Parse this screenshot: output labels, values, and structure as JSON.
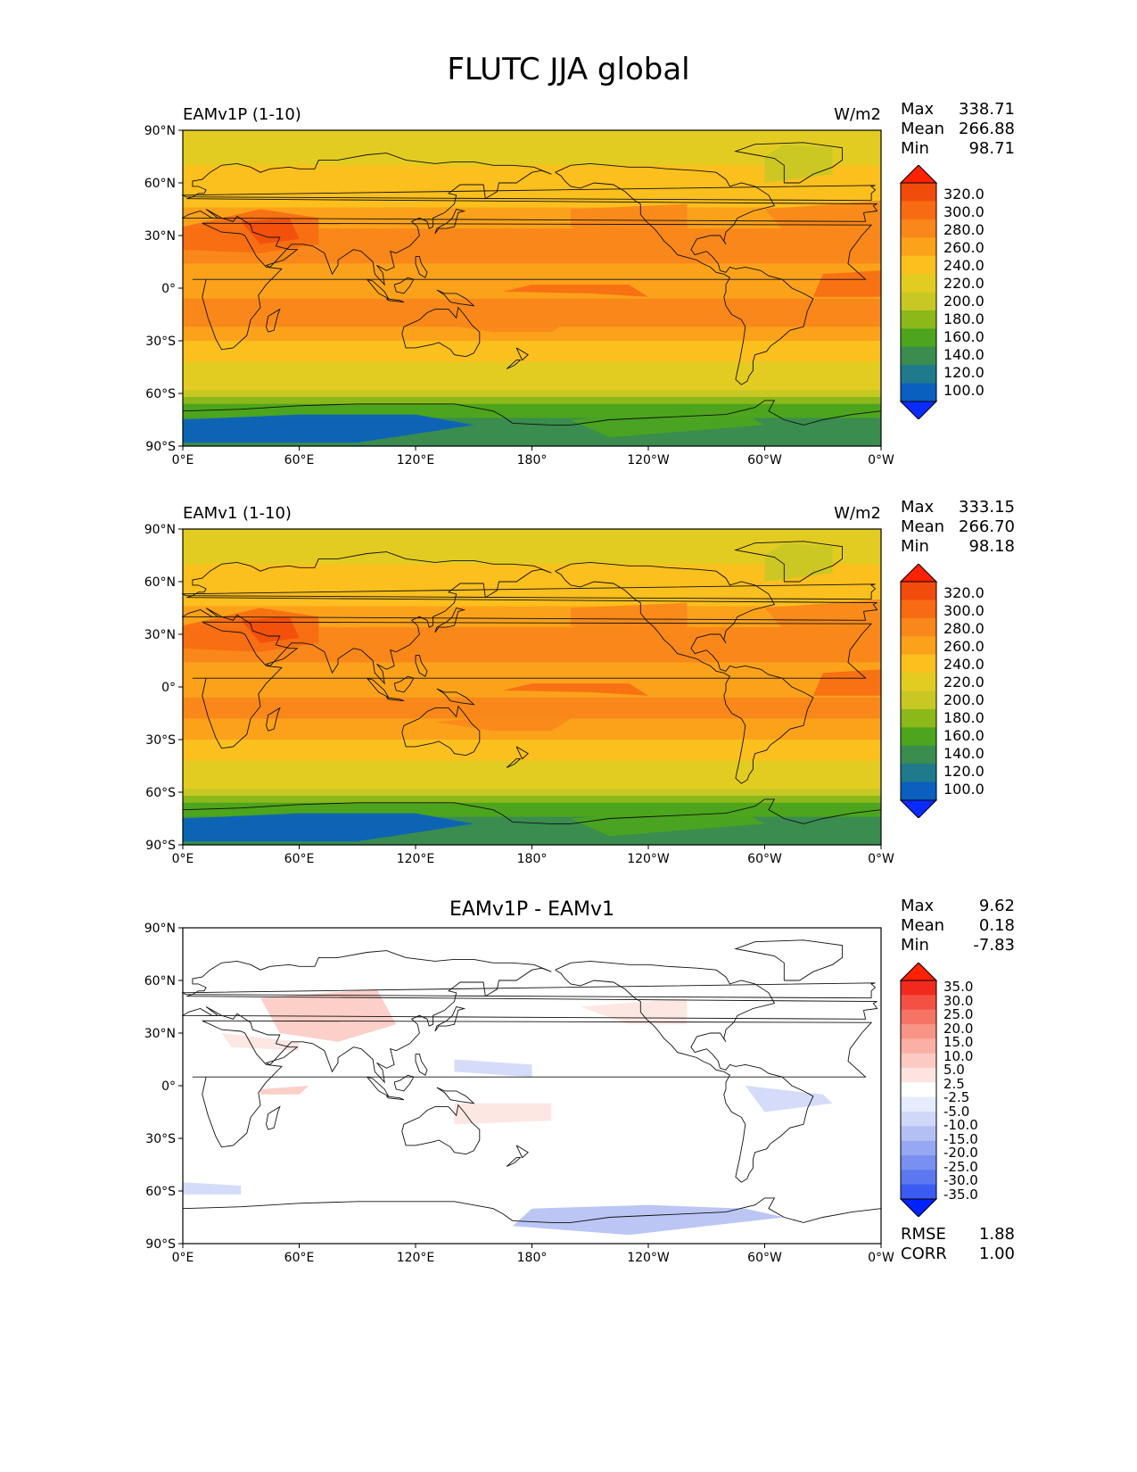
{
  "figure_title": "FLUTC JJA global",
  "lat_ticks": [
    "90°N",
    "60°N",
    "30°N",
    "0°",
    "30°S",
    "60°S",
    "90°S"
  ],
  "lon_ticks": [
    "0°E",
    "60°E",
    "120°E",
    "180°",
    "120°W",
    "60°W",
    "0°W"
  ],
  "panels": [
    {
      "title_left": "EAMv1P (1-10)",
      "units": "W/m2",
      "stats": {
        "max_label": "Max",
        "max": "338.71",
        "mean_label": "Mean",
        "mean": "266.88",
        "min_label": "Min",
        "min": "98.71"
      },
      "colorbar_labels": [
        "320.0",
        "300.0",
        "280.0",
        "260.0",
        "240.0",
        "220.0",
        "200.0",
        "180.0",
        "160.0",
        "140.0",
        "120.0",
        "100.0"
      ]
    },
    {
      "title_left": "EAMv1 (1-10)",
      "units": "W/m2",
      "stats": {
        "max_label": "Max",
        "max": "333.15",
        "mean_label": "Mean",
        "mean": "266.70",
        "min_label": "Min",
        "min": "98.18"
      },
      "colorbar_labels": [
        "320.0",
        "300.0",
        "280.0",
        "260.0",
        "240.0",
        "220.0",
        "200.0",
        "180.0",
        "160.0",
        "140.0",
        "120.0",
        "100.0"
      ]
    },
    {
      "title_center": "EAMv1P - EAMv1",
      "stats": {
        "max_label": "Max",
        "max": "9.62",
        "mean_label": "Mean",
        "mean": "0.18",
        "min_label": "Min",
        "min": "-7.83"
      },
      "colorbar_labels": [
        "35.0",
        "30.0",
        "25.0",
        "20.0",
        "15.0",
        "10.0",
        "5.0",
        "2.5",
        "-2.5",
        "-5.0",
        "-10.0",
        "-15.0",
        "-20.0",
        "-25.0",
        "-30.0",
        "-35.0"
      ],
      "rmse_label": "RMSE",
      "rmse": "1.88",
      "corr_label": "CORR",
      "corr": "1.00"
    }
  ],
  "colors": {
    "field_levels": [
      "#0a2bff",
      "#0a5fbf",
      "#1f7a8c",
      "#3a8c4f",
      "#4ca51c",
      "#8cb81a",
      "#c8c824",
      "#e3cc22",
      "#fbbf1e",
      "#fba21a",
      "#f9871a",
      "#f76b12",
      "#f24c0c",
      "#ff2200"
    ],
    "diff_levels": [
      "#0022ff",
      "#3a5cf2",
      "#5c78f0",
      "#7a90f0",
      "#97a8f2",
      "#b4c0f4",
      "#cfd8f8",
      "#e6ecfc",
      "#ffffff",
      "#fde4e0",
      "#fccac2",
      "#fab0a4",
      "#f89486",
      "#f67466",
      "#f45044",
      "#f22a1e",
      "#ff2200"
    ]
  },
  "chart_data": [
    {
      "type": "heatmap",
      "title": "EAMv1P (1-10)",
      "units": "W/m2",
      "x_axis": "longitude",
      "y_axis": "latitude",
      "xlim": [
        0,
        360
      ],
      "ylim": [
        -90,
        90
      ],
      "levels": [
        100,
        120,
        140,
        160,
        180,
        200,
        220,
        240,
        260,
        280,
        300,
        320
      ],
      "zonal_mean_profile": {
        "lat": [
          -90,
          -80,
          -70,
          -60,
          -50,
          -40,
          -30,
          -20,
          -10,
          0,
          10,
          20,
          30,
          40,
          50,
          60,
          70,
          80,
          90
        ],
        "value": [
          140,
          140,
          165,
          215,
          232,
          245,
          262,
          280,
          285,
          275,
          278,
          282,
          285,
          270,
          255,
          248,
          240,
          225,
          222
        ]
      },
      "max": 338.71,
      "mean": 266.88,
      "min": 98.71
    },
    {
      "type": "heatmap",
      "title": "EAMv1 (1-10)",
      "units": "W/m2",
      "x_axis": "longitude",
      "y_axis": "latitude",
      "xlim": [
        0,
        360
      ],
      "ylim": [
        -90,
        90
      ],
      "levels": [
        100,
        120,
        140,
        160,
        180,
        200,
        220,
        240,
        260,
        280,
        300,
        320
      ],
      "zonal_mean_profile": {
        "lat": [
          -90,
          -80,
          -70,
          -60,
          -50,
          -40,
          -30,
          -20,
          -10,
          0,
          10,
          20,
          30,
          40,
          50,
          60,
          70,
          80,
          90
        ],
        "value": [
          140,
          140,
          165,
          215,
          232,
          245,
          262,
          279,
          284,
          274,
          277,
          282,
          285,
          270,
          255,
          248,
          240,
          225,
          222
        ]
      },
      "max": 333.15,
      "mean": 266.7,
      "min": 98.18
    },
    {
      "type": "heatmap",
      "title": "EAMv1P - EAMv1",
      "x_axis": "longitude",
      "y_axis": "latitude",
      "xlim": [
        0,
        360
      ],
      "ylim": [
        -90,
        90
      ],
      "levels": [
        -35,
        -30,
        -25,
        -20,
        -15,
        -10,
        -5,
        -2.5,
        2.5,
        5,
        10,
        15,
        20,
        25,
        30,
        35
      ],
      "max": 9.62,
      "mean": 0.18,
      "min": -7.83,
      "rmse": 1.88,
      "corr": 1.0
    }
  ]
}
